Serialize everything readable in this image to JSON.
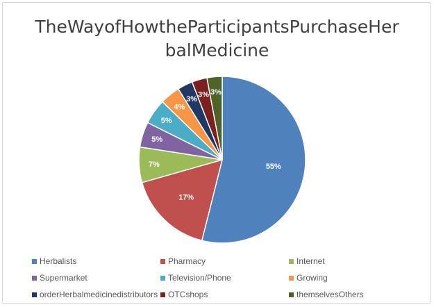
{
  "chart_data": {
    "type": "pie",
    "title_line1": "TheWayofHowtheParticipantsPurchaseHer",
    "title_line2": "balMedicine",
    "legend_position": "bottom",
    "slices": [
      {
        "name": "Herbalists",
        "value": 55,
        "label": "55%",
        "color": "#4f81bd"
      },
      {
        "name": "Pharmacy",
        "value": 17,
        "label": "17%",
        "color": "#c0504d"
      },
      {
        "name": "Internet",
        "value": 7,
        "label": "7%",
        "color": "#9bbb59"
      },
      {
        "name": "Supermarket",
        "value": 5,
        "label": "5%",
        "color": "#8064a2"
      },
      {
        "name": "Television/Phone",
        "value": 5,
        "label": "5%",
        "color": "#4bacc6"
      },
      {
        "name": "Growing",
        "value": 4,
        "label": "4%",
        "color": "#f79646"
      },
      {
        "name": "orderHerbalmedicinedistributors",
        "value": 3,
        "label": "3%",
        "color": "#1f3864"
      },
      {
        "name": "OTCshops",
        "value": 3,
        "label": "3%",
        "color": "#7b1f1f"
      },
      {
        "name": "themselvesOthers",
        "value": 3,
        "label": "3%",
        "color": "#4f6228"
      }
    ]
  }
}
